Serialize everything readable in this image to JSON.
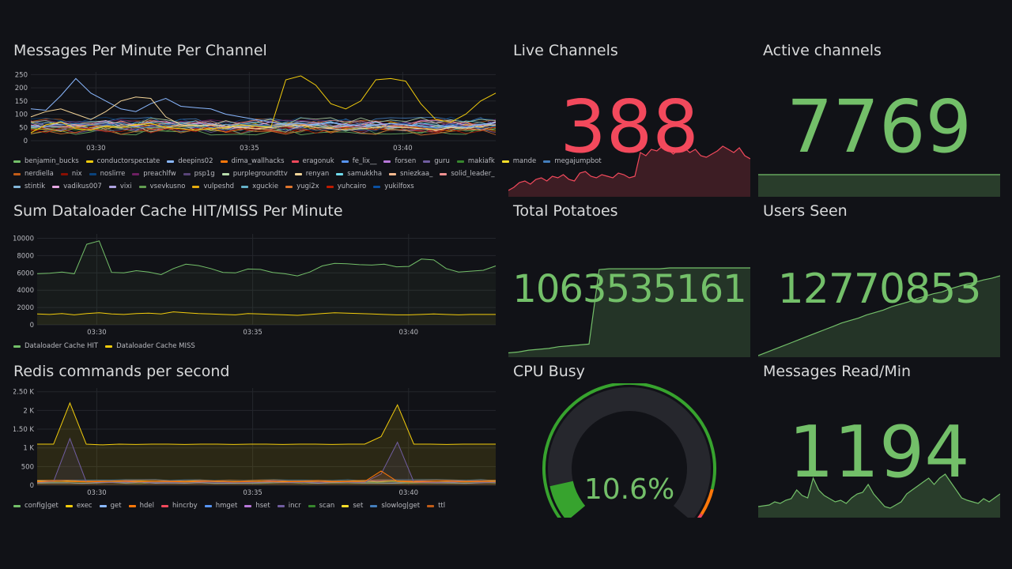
{
  "panels": {
    "messages_per_minute": {
      "title": "Messages Per Minute Per Channel",
      "y_ticks": [
        "250",
        "200",
        "150",
        "100",
        "50",
        "0"
      ],
      "x_ticks": [
        "03:30",
        "03:35",
        "03:40"
      ],
      "legend": [
        {
          "name": "benjamin_bucks",
          "color": "#73bf69"
        },
        {
          "name": "conductorspectate",
          "color": "#f2cc0c"
        },
        {
          "name": "deepins02",
          "color": "#8ab8ff"
        },
        {
          "name": "dima_wallhacks",
          "color": "#ff780a"
        },
        {
          "name": "eragonuk",
          "color": "#f2495c"
        },
        {
          "name": "fe_lix__",
          "color": "#5794f2"
        },
        {
          "name": "forsen",
          "color": "#b877d9"
        },
        {
          "name": "guru",
          "color": "#705da0"
        },
        {
          "name": "makiafk",
          "color": "#37872d"
        },
        {
          "name": "mande",
          "color": "#fade2a"
        },
        {
          "name": "megajumpbot",
          "color": "#447ebc"
        },
        {
          "name": "nerdiella",
          "color": "#c15c17"
        },
        {
          "name": "nix",
          "color": "#890f02"
        },
        {
          "name": "noslirre",
          "color": "#0a437c"
        },
        {
          "name": "preachlfw",
          "color": "#6d1f62"
        },
        {
          "name": "psp1g",
          "color": "#584477"
        },
        {
          "name": "purplegroundttv",
          "color": "#b7dbab"
        },
        {
          "name": "renyan",
          "color": "#f4d598"
        },
        {
          "name": "samukkha",
          "color": "#70dbed"
        },
        {
          "name": "sniezkaa_",
          "color": "#f9ba8f"
        },
        {
          "name": "solid_leader_",
          "color": "#f29191"
        },
        {
          "name": "stintik",
          "color": "#82b5d8"
        },
        {
          "name": "vadikus007",
          "color": "#e5a8e2"
        },
        {
          "name": "vixi",
          "color": "#aea2e0"
        },
        {
          "name": "vsevkusno",
          "color": "#629e51"
        },
        {
          "name": "vulpeshd",
          "color": "#e5ac0e"
        },
        {
          "name": "xguckie",
          "color": "#64b0c8"
        },
        {
          "name": "yugi2x",
          "color": "#e0752d"
        },
        {
          "name": "yuhcairo",
          "color": "#bf1b00"
        },
        {
          "name": "yukilfoxs",
          "color": "#0a50a1"
        }
      ]
    },
    "dataloader": {
      "title": "Sum Dataloader Cache HIT/MISS Per Minute",
      "y_ticks": [
        "10000",
        "8000",
        "6000",
        "4000",
        "2000",
        "0"
      ],
      "x_ticks": [
        "03:30",
        "03:35",
        "03:40"
      ],
      "legend": [
        {
          "name": "Dataloader Cache HIT",
          "color": "#73bf69"
        },
        {
          "name": "Dataloader Cache MISS",
          "color": "#f2cc0c"
        }
      ]
    },
    "redis": {
      "title": "Redis commands per second",
      "y_ticks": [
        "2.50 K",
        "2 K",
        "1.50 K",
        "1 K",
        "500",
        "0"
      ],
      "x_ticks": [
        "03:30",
        "03:35",
        "03:40"
      ],
      "legend": [
        {
          "name": "config|get",
          "color": "#73bf69"
        },
        {
          "name": "exec",
          "color": "#f2cc0c"
        },
        {
          "name": "get",
          "color": "#8ab8ff"
        },
        {
          "name": "hdel",
          "color": "#ff780a"
        },
        {
          "name": "hincrby",
          "color": "#f2495c"
        },
        {
          "name": "hmget",
          "color": "#5794f2"
        },
        {
          "name": "hset",
          "color": "#b877d9"
        },
        {
          "name": "incr",
          "color": "#705da0"
        },
        {
          "name": "scan",
          "color": "#37872d"
        },
        {
          "name": "set",
          "color": "#fade2a"
        },
        {
          "name": "slowlog|get",
          "color": "#447ebc"
        },
        {
          "name": "ttl",
          "color": "#c15c17"
        }
      ]
    },
    "live_channels": {
      "title": "Live Channels",
      "value": "388",
      "color": "#f2495c"
    },
    "active_channels": {
      "title": "Active channels",
      "value": "7769",
      "color": "#73bf69"
    },
    "total_potatoes": {
      "title": "Total Potatoes",
      "value": "1063535161",
      "color": "#73bf69"
    },
    "users_seen": {
      "title": "Users Seen",
      "value": "12770853",
      "color": "#73bf69"
    },
    "cpu_busy": {
      "title": "CPU Busy",
      "value": "10.6%",
      "percent": 10.6,
      "color": "#37a32e"
    },
    "messages_read": {
      "title": "Messages Read/Min",
      "value": "1194",
      "color": "#73bf69"
    }
  },
  "chart_data": [
    {
      "type": "line",
      "title": "Messages Per Minute Per Channel",
      "x_ticks": [
        "03:30",
        "03:35",
        "03:40"
      ],
      "ylim": [
        0,
        260
      ],
      "series": [
        {
          "name": "conductorspectate",
          "values": [
            30,
            60,
            70,
            45,
            40,
            55,
            50,
            60,
            65,
            50,
            45,
            40,
            45,
            50,
            60,
            55,
            50,
            230,
            245,
            210,
            140,
            120,
            150,
            230,
            235,
            225,
            140,
            80,
            70,
            100,
            150,
            180
          ]
        },
        {
          "name": "deepins02",
          "values": [
            120,
            115,
            170,
            235,
            180,
            150,
            120,
            110,
            140,
            160,
            130,
            125,
            120,
            100,
            90,
            80,
            70,
            60,
            65,
            60,
            70,
            60,
            55,
            60,
            65,
            60,
            55,
            50,
            55,
            50,
            60,
            70
          ]
        },
        {
          "name": "renyan",
          "values": [
            90,
            110,
            120,
            100,
            80,
            110,
            150,
            165,
            160,
            90,
            60,
            55,
            60,
            55,
            50,
            45,
            50,
            55,
            60,
            50,
            45,
            40,
            45,
            50,
            55,
            50,
            45,
            40,
            50,
            45,
            55,
            60
          ]
        }
      ]
    },
    {
      "type": "area",
      "title": "Sum Dataloader Cache HIT/MISS Per Minute",
      "x_ticks": [
        "03:30",
        "03:35",
        "03:40"
      ],
      "ylim": [
        0,
        10500
      ],
      "series": [
        {
          "name": "Dataloader Cache HIT",
          "values": [
            5900,
            5950,
            6100,
            5900,
            9300,
            9700,
            6050,
            6000,
            6250,
            6100,
            5800,
            6500,
            7000,
            6850,
            6500,
            6050,
            6000,
            6450,
            6400,
            6050,
            5900,
            5650,
            6100,
            6800,
            7100,
            7050,
            6950,
            6900,
            7000,
            6700,
            6750,
            7600,
            7500,
            6500,
            6100,
            6200,
            6300,
            6800
          ]
        },
        {
          "name": "Dataloader Cache MISS",
          "values": [
            1250,
            1200,
            1300,
            1150,
            1300,
            1400,
            1250,
            1200,
            1300,
            1350,
            1250,
            1500,
            1400,
            1300,
            1250,
            1200,
            1150,
            1300,
            1250,
            1200,
            1150,
            1100,
            1200,
            1300,
            1400,
            1350,
            1300,
            1250,
            1200,
            1150,
            1150,
            1200,
            1250,
            1200,
            1150,
            1200,
            1200,
            1200
          ]
        }
      ]
    },
    {
      "type": "area",
      "title": "Redis commands per second",
      "x_ticks": [
        "03:30",
        "03:35",
        "03:40"
      ],
      "ylim": [
        0,
        2600
      ],
      "series": [
        {
          "name": "exec",
          "values": [
            1100,
            1100,
            2200,
            1100,
            1080,
            1100,
            1090,
            1100,
            1100,
            1090,
            1100,
            1100,
            1090,
            1100,
            1100,
            1090,
            1100,
            1100,
            1090,
            1100,
            1100,
            1300,
            2150,
            1100,
            1100,
            1090,
            1100,
            1100,
            1100
          ]
        },
        {
          "name": "incr",
          "values": [
            80,
            100,
            1250,
            90,
            80,
            80,
            90,
            80,
            80,
            80,
            90,
            80,
            80,
            80,
            90,
            80,
            80,
            80,
            90,
            80,
            80,
            300,
            1150,
            90,
            80,
            80,
            90,
            80,
            80
          ]
        },
        {
          "name": "hdel",
          "values": [
            90,
            110,
            100,
            90,
            100,
            110,
            90,
            100,
            100,
            90,
            100,
            110,
            90,
            100,
            100,
            90,
            100,
            110,
            90,
            100,
            100,
            380,
            100,
            90,
            100,
            110,
            90,
            100,
            100
          ]
        }
      ]
    },
    {
      "type": "area",
      "title": "Live Channels",
      "values": [
        20,
        30,
        45,
        50,
        40,
        55,
        60,
        50,
        65,
        60,
        70,
        55,
        50,
        75,
        80,
        65,
        60,
        70,
        65,
        60,
        75,
        70,
        60,
        65,
        140,
        130,
        150,
        145,
        160,
        150,
        135,
        150,
        155,
        140,
        150,
        130,
        125,
        135,
        145,
        160,
        150,
        140,
        155,
        130,
        120
      ]
    },
    {
      "type": "area",
      "title": "Active channels",
      "values": [
        1,
        1,
        1,
        1,
        1,
        1,
        1,
        1,
        1,
        1
      ]
    },
    {
      "type": "area",
      "title": "Total Potatoes",
      "values": [
        5,
        6,
        8,
        9,
        10,
        12,
        13,
        14,
        15,
        100,
        101,
        101,
        101,
        101,
        101,
        101,
        102,
        102,
        102,
        102,
        102,
        102,
        102,
        102,
        102
      ]
    },
    {
      "type": "area",
      "title": "Users Seen",
      "values": [
        2,
        6,
        10,
        14,
        18,
        22,
        26,
        30,
        34,
        38,
        42,
        45,
        48,
        52,
        55,
        58,
        62,
        65,
        68,
        72,
        75,
        78,
        80,
        84,
        87,
        90,
        92,
        95,
        97,
        100
      ]
    },
    {
      "type": "area",
      "title": "Messages Read/Min",
      "values": [
        14,
        15,
        16,
        20,
        18,
        22,
        24,
        35,
        28,
        25,
        50,
        35,
        28,
        24,
        20,
        22,
        18,
        25,
        30,
        32,
        42,
        30,
        22,
        14,
        12,
        16,
        20,
        30,
        35,
        40,
        45,
        50,
        42,
        50,
        55,
        45,
        35,
        25,
        22,
        20,
        18,
        24,
        20,
        25,
        30
      ]
    },
    {
      "type": "gauge",
      "title": "CPU Busy",
      "values": [
        10.6
      ]
    }
  ]
}
